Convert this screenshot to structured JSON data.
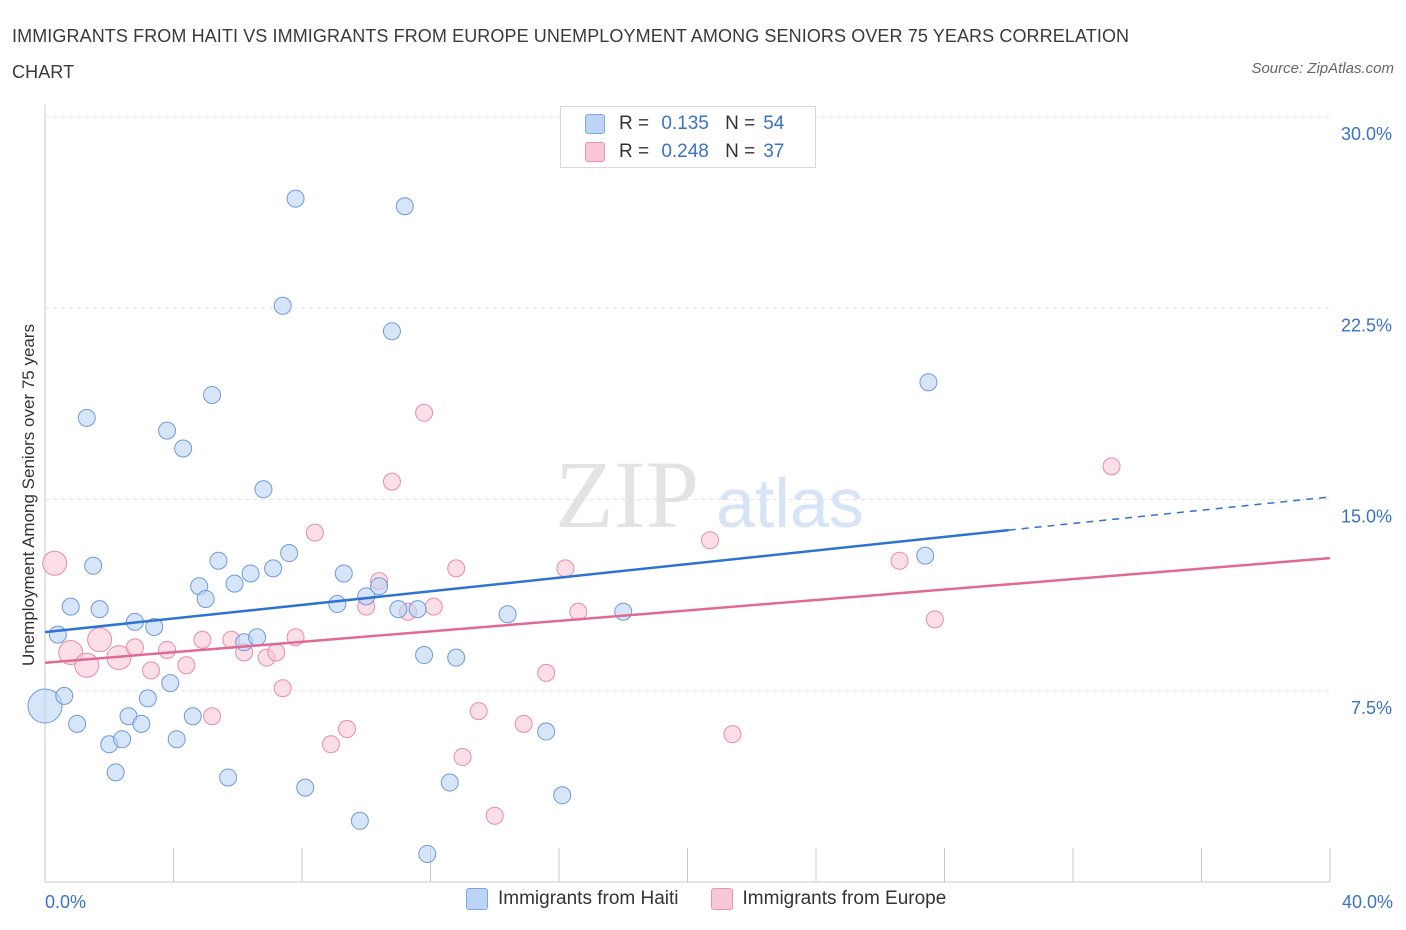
{
  "title": "IMMIGRANTS FROM HAITI VS IMMIGRANTS FROM EUROPE UNEMPLOYMENT AMONG SENIORS OVER 75 YEARS CORRELATION CHART",
  "source": "Source: ZipAtlas.com",
  "watermark": {
    "zip": "ZIP",
    "atlas": "atlas"
  },
  "legend": {
    "r_label": "R =",
    "n_label": "N =",
    "rows": [
      {
        "swatch_fill": "#bcd4f5",
        "swatch_stroke": "#7fa8e0",
        "r": "0.135",
        "n": "54"
      },
      {
        "swatch_fill": "#f8c8d6",
        "swatch_stroke": "#eb93b0",
        "r": "0.248",
        "n": "37"
      }
    ]
  },
  "colors": {
    "haiti_fill": "#bcd4f5",
    "haiti_stroke": "#6f9ad8",
    "haiti_line": "#2f73d2",
    "europe_fill": "#f8c8d6",
    "europe_stroke": "#e58eab",
    "europe_line": "#e06996",
    "axis_text": "#3a73c4",
    "grid": "#e3e3e3"
  },
  "chart_data": {
    "type": "scatter",
    "title": "IMMIGRANTS FROM HAITI VS IMMIGRANTS FROM EUROPE UNEMPLOYMENT AMONG SENIORS OVER 75 YEARS CORRELATION CHART",
    "xlabel": "",
    "ylabel": "Unemployment Among Seniors over 75 years",
    "xlim": [
      0,
      40
    ],
    "ylim": [
      0,
      30
    ],
    "x_ticks": [
      "0.0%",
      "40.0%"
    ],
    "y_ticks": [
      {
        "value": 7.5,
        "label": "7.5%"
      },
      {
        "value": 15.0,
        "label": "15.0%"
      },
      {
        "value": 22.5,
        "label": "22.5%"
      },
      {
        "value": 30.0,
        "label": "30.0%"
      }
    ],
    "grid": true,
    "legend_position": "bottom",
    "series": [
      {
        "name": "Immigrants from Haiti",
        "r": 0.135,
        "n": 54,
        "trend": {
          "x": [
            0,
            30
          ],
          "y": [
            9.8,
            13.8
          ],
          "dashed_to": {
            "x": 40,
            "y": 15.1
          }
        },
        "points": [
          [
            0.0,
            6.9,
            3
          ],
          [
            0.4,
            9.7,
            1
          ],
          [
            0.6,
            7.3,
            1
          ],
          [
            0.8,
            10.8,
            1
          ],
          [
            1.0,
            6.2,
            1
          ],
          [
            1.3,
            18.2,
            1
          ],
          [
            1.5,
            12.4,
            1
          ],
          [
            1.7,
            10.7,
            1
          ],
          [
            2.0,
            5.4,
            1
          ],
          [
            2.2,
            4.3,
            1
          ],
          [
            2.4,
            5.6,
            1
          ],
          [
            2.6,
            6.5,
            1
          ],
          [
            2.8,
            10.2,
            1
          ],
          [
            3.0,
            6.2,
            1
          ],
          [
            3.2,
            7.2,
            1
          ],
          [
            3.4,
            10.0,
            1
          ],
          [
            3.8,
            17.7,
            1
          ],
          [
            3.9,
            7.8,
            1
          ],
          [
            4.1,
            5.6,
            1
          ],
          [
            4.3,
            17.0,
            1
          ],
          [
            4.6,
            6.5,
            1
          ],
          [
            4.8,
            11.6,
            1
          ],
          [
            5.0,
            11.1,
            1
          ],
          [
            5.2,
            19.1,
            1
          ],
          [
            5.4,
            12.6,
            1
          ],
          [
            5.7,
            4.1,
            1
          ],
          [
            5.9,
            11.7,
            1
          ],
          [
            6.2,
            9.4,
            1
          ],
          [
            6.4,
            12.1,
            1
          ],
          [
            6.6,
            9.6,
            1
          ],
          [
            6.8,
            15.4,
            1
          ],
          [
            7.1,
            12.3,
            1
          ],
          [
            7.4,
            22.6,
            1
          ],
          [
            7.6,
            12.9,
            1
          ],
          [
            7.8,
            26.8,
            1
          ],
          [
            8.1,
            3.7,
            1
          ],
          [
            9.1,
            10.9,
            1
          ],
          [
            9.3,
            12.1,
            1
          ],
          [
            9.8,
            2.4,
            1
          ],
          [
            10.0,
            11.2,
            1
          ],
          [
            10.4,
            11.6,
            1
          ],
          [
            10.8,
            21.6,
            1
          ],
          [
            11.0,
            10.7,
            1
          ],
          [
            11.2,
            26.5,
            1
          ],
          [
            11.6,
            10.7,
            1
          ],
          [
            11.8,
            8.9,
            1
          ],
          [
            11.9,
            1.1,
            1
          ],
          [
            12.6,
            3.9,
            1
          ],
          [
            12.8,
            8.8,
            1
          ],
          [
            14.4,
            10.5,
            1
          ],
          [
            15.6,
            5.9,
            1
          ],
          [
            16.1,
            3.4,
            1
          ],
          [
            18.0,
            10.6,
            1
          ],
          [
            27.4,
            12.8,
            1
          ],
          [
            27.5,
            19.6,
            1
          ]
        ]
      },
      {
        "name": "Immigrants from Europe",
        "r": 0.248,
        "n": 37,
        "trend": {
          "x": [
            0,
            40
          ],
          "y": [
            8.6,
            12.7
          ]
        },
        "points": [
          [
            0.3,
            12.5,
            2
          ],
          [
            0.8,
            9.0,
            2
          ],
          [
            1.3,
            8.5,
            2
          ],
          [
            1.7,
            9.5,
            2
          ],
          [
            2.3,
            8.8,
            2
          ],
          [
            2.8,
            9.2,
            1
          ],
          [
            3.3,
            8.3,
            1
          ],
          [
            3.8,
            9.1,
            1
          ],
          [
            4.4,
            8.5,
            1
          ],
          [
            4.9,
            9.5,
            1
          ],
          [
            5.2,
            6.5,
            1
          ],
          [
            5.8,
            9.5,
            1
          ],
          [
            6.2,
            9.0,
            1
          ],
          [
            6.9,
            8.8,
            1
          ],
          [
            7.2,
            9.0,
            1
          ],
          [
            7.4,
            7.6,
            1
          ],
          [
            7.8,
            9.6,
            1
          ],
          [
            8.4,
            13.7,
            1
          ],
          [
            8.9,
            5.4,
            1
          ],
          [
            9.4,
            6.0,
            1
          ],
          [
            10.0,
            10.8,
            1
          ],
          [
            10.4,
            11.8,
            1
          ],
          [
            10.8,
            15.7,
            1
          ],
          [
            11.3,
            10.6,
            1
          ],
          [
            11.8,
            18.4,
            1
          ],
          [
            12.1,
            10.8,
            1
          ],
          [
            12.8,
            12.3,
            1
          ],
          [
            13.0,
            4.9,
            1
          ],
          [
            13.5,
            6.7,
            1
          ],
          [
            14.0,
            2.6,
            1
          ],
          [
            14.9,
            6.2,
            1
          ],
          [
            15.6,
            8.2,
            1
          ],
          [
            16.2,
            12.3,
            1
          ],
          [
            16.6,
            10.6,
            1
          ],
          [
            20.7,
            13.4,
            1
          ],
          [
            21.4,
            5.8,
            1
          ],
          [
            26.6,
            12.6,
            1
          ],
          [
            27.7,
            10.3,
            1
          ],
          [
            33.2,
            16.3,
            1
          ]
        ]
      }
    ]
  },
  "legend_bottom": [
    {
      "label": "Immigrants from Haiti"
    },
    {
      "label": "Immigrants from Europe"
    }
  ]
}
